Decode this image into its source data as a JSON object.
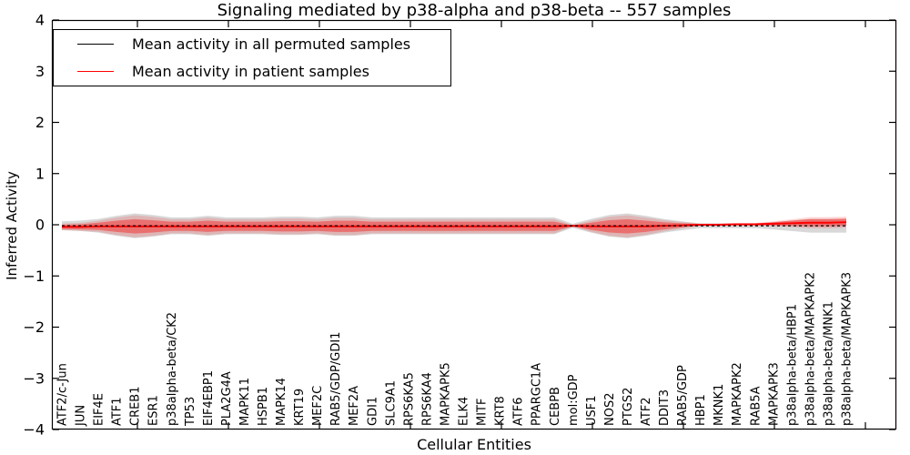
{
  "chart_data": {
    "type": "line",
    "title": "Signaling mediated by p38-alpha and p38-beta -- 557 samples",
    "xlabel": "Cellular Entities",
    "ylabel": "Inferred Activity",
    "ylim": [
      -4,
      4
    ],
    "yticks": [
      4,
      3,
      2,
      1,
      0,
      -1,
      -2,
      -3,
      -4
    ],
    "grid": false,
    "legend_position": "upper left",
    "legend": [
      {
        "label": "Mean activity in all permuted samples",
        "color": "#000000"
      },
      {
        "label": "Mean activity in patient samples",
        "color": "#ff0000"
      }
    ],
    "categories": [
      "ATF2/c-Jun",
      "JUN",
      "EIF4E",
      "ATF1",
      "CREB1",
      "ESR1",
      "p38alpha-beta/CK2",
      "TP53",
      "EIF4EBP1",
      "PLA2G4A",
      "MAPK11",
      "HSPB1",
      "MAPK14",
      "KRT19",
      "MEF2C",
      "RAB5/GDP/GDI1",
      "MEF2A",
      "GDI1",
      "SLC9A1",
      "RPS6KA5",
      "RPS6KA4",
      "MAPKAPK5",
      "ELK4",
      "MITF",
      "KRT8",
      "ATF6",
      "PPARGC1A",
      "CEBPB",
      "mol:GDP",
      "USF1",
      "NOS2",
      "PTGS2",
      "ATF2",
      "DDIT3",
      "RAB5/GDP",
      "HBP1",
      "MKNK1",
      "MAPKAPK2",
      "RAB5A",
      "MAPKAPK3",
      "p38alpha-beta/HBP1",
      "p38alpha-beta/MAPKAPK2",
      "p38alpha-beta/MNK1",
      "p38alpha-beta/MAPKAPK3"
    ],
    "series": [
      {
        "name": "Mean activity in all permuted samples",
        "color": "#000000",
        "line_style": "dashed",
        "values": [
          -0.02,
          -0.02,
          -0.02,
          -0.02,
          -0.02,
          -0.02,
          -0.02,
          -0.02,
          -0.02,
          -0.02,
          -0.02,
          -0.02,
          -0.02,
          -0.02,
          -0.02,
          -0.02,
          -0.02,
          -0.02,
          -0.02,
          -0.02,
          -0.02,
          -0.02,
          -0.02,
          -0.02,
          -0.02,
          -0.02,
          -0.02,
          -0.02,
          -0.02,
          -0.02,
          -0.02,
          -0.02,
          -0.02,
          -0.02,
          -0.02,
          -0.02,
          -0.02,
          -0.02,
          -0.02,
          -0.02,
          -0.02,
          -0.02,
          -0.02,
          -0.02
        ]
      },
      {
        "name": "Mean activity in patient samples",
        "color": "#ff0000",
        "line_style": "solid",
        "values": [
          -0.04,
          -0.04,
          -0.03,
          -0.03,
          -0.03,
          -0.03,
          -0.03,
          -0.03,
          -0.03,
          -0.03,
          -0.03,
          -0.03,
          -0.03,
          -0.03,
          -0.03,
          -0.03,
          -0.03,
          -0.03,
          -0.03,
          -0.03,
          -0.03,
          -0.03,
          -0.03,
          -0.03,
          -0.03,
          -0.03,
          -0.03,
          -0.03,
          -0.02,
          -0.03,
          -0.03,
          -0.03,
          -0.03,
          -0.02,
          -0.01,
          0.0,
          0.0,
          0.01,
          0.01,
          0.02,
          0.03,
          0.04,
          0.04,
          0.05
        ]
      }
    ],
    "bands": {
      "description": "translucent uncertainty bands around each mean line",
      "patient_std": [
        0.04,
        0.05,
        0.07,
        0.11,
        0.14,
        0.12,
        0.09,
        0.09,
        0.11,
        0.09,
        0.09,
        0.09,
        0.1,
        0.1,
        0.09,
        0.11,
        0.11,
        0.09,
        0.09,
        0.09,
        0.09,
        0.09,
        0.09,
        0.09,
        0.09,
        0.09,
        0.09,
        0.09,
        0.01,
        0.07,
        0.12,
        0.14,
        0.11,
        0.07,
        0.04,
        0.015,
        0.015,
        0.015,
        0.015,
        0.03,
        0.05,
        0.07,
        0.07,
        0.07
      ],
      "colors": {
        "patient_inner": "rgba(255,0,0,0.38)",
        "patient_outer": "rgba(255,0,0,0.16)",
        "permuted": "rgba(115,115,115,0.28)"
      }
    }
  }
}
